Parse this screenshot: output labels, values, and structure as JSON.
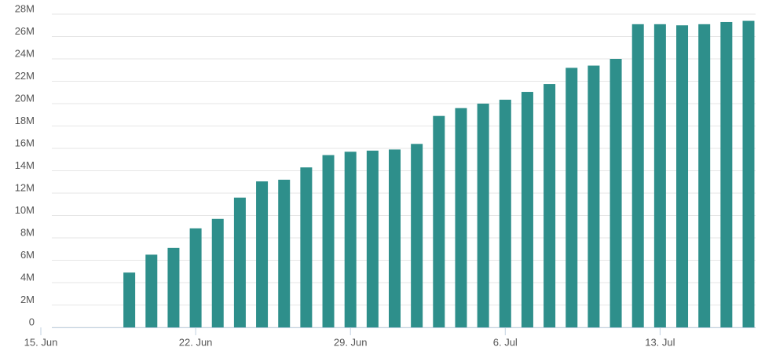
{
  "chart_data": {
    "type": "bar",
    "x": [
      "19 Jun",
      "20 Jun",
      "21 Jun",
      "22 Jun",
      "23 Jun",
      "24 Jun",
      "25 Jun",
      "26 Jun",
      "27 Jun",
      "28 Jun",
      "29 Jun",
      "30 Jun",
      "1 Jul",
      "2 Jul",
      "3 Jul",
      "4 Jul",
      "5 Jul",
      "6 Jul",
      "7 Jul",
      "8 Jul",
      "9 Jul",
      "10 Jul",
      "11 Jul",
      "12 Jul",
      "13 Jul",
      "14 Jul",
      "15 Jul",
      "16 Jul",
      "17 Jul"
    ],
    "values": [
      4900000,
      6500000,
      7100000,
      8850000,
      9700000,
      11600000,
      13050000,
      13200000,
      14300000,
      15400000,
      15700000,
      15800000,
      15900000,
      16400000,
      18900000,
      19600000,
      20000000,
      20350000,
      21050000,
      21750000,
      23200000,
      23400000,
      24000000,
      27100000,
      27100000,
      27000000,
      27100000,
      27300000,
      27400000
    ],
    "color": "#2e8f8b",
    "xlim": [
      "15 Jun",
      "17 Jul"
    ],
    "xticks": [
      {
        "value": "15 Jun",
        "label": "15. Jun"
      },
      {
        "value": "22 Jun",
        "label": "22. Jun"
      },
      {
        "value": "29 Jun",
        "label": "29. Jun"
      },
      {
        "value": "6 Jul",
        "label": "6. Jul"
      },
      {
        "value": "13 Jul",
        "label": "13. Jul"
      }
    ],
    "ylim": [
      0,
      28000000
    ],
    "yticks": [
      0,
      {
        "value": 2000000,
        "label": "2M"
      },
      {
        "value": 4000000,
        "label": "4M"
      },
      {
        "value": 6000000,
        "label": "6M"
      },
      {
        "value": 8000000,
        "label": "8M"
      },
      {
        "value": 10000000,
        "label": "10M"
      },
      {
        "value": 12000000,
        "label": "12M"
      },
      {
        "value": 14000000,
        "label": "14M"
      },
      {
        "value": 16000000,
        "label": "16M"
      },
      {
        "value": 18000000,
        "label": "18M"
      },
      {
        "value": 20000000,
        "label": "20M"
      },
      {
        "value": 22000000,
        "label": "22M"
      },
      {
        "value": 24000000,
        "label": "24M"
      },
      {
        "value": 26000000,
        "label": "26M"
      },
      {
        "value": 28000000,
        "label": "28M"
      }
    ],
    "grid": true
  }
}
